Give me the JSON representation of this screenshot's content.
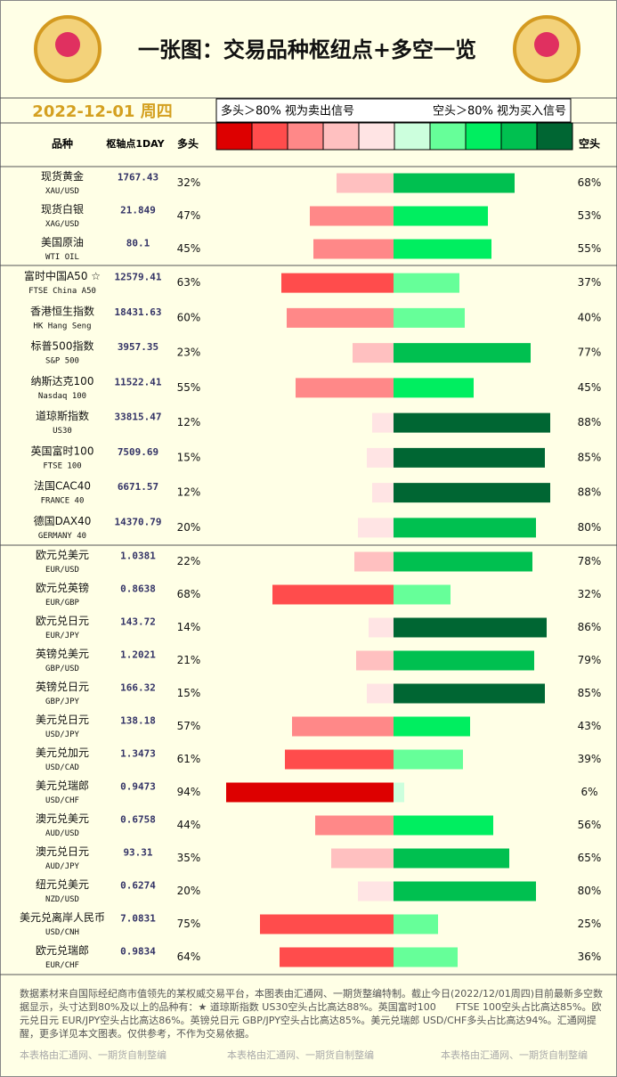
{
  "header": {
    "title": "一张图：交易品种枢纽点+多空一览",
    "date": "2022-12-01  周四",
    "legend_sell": "多头＞80% 视为卖出信号",
    "legend_buy": "空头＞80% 视为买入信号"
  },
  "long_colors": [
    "#ffe4e4",
    "#ffc0c0",
    "#ff8888",
    "#ff4c4c",
    "#dd0000"
  ],
  "short_colors": [
    "#ccffdd",
    "#66ff99",
    "#00ee60",
    "#00c050",
    "#006633"
  ],
  "columns": {
    "name": "品种",
    "pivot": "枢轴点1DAY",
    "long": "多头",
    "short": "空头"
  },
  "groups": [
    {
      "rows": [
        {
          "name": "现货黄金",
          "code": "XAU/USD",
          "pivot": 1767.43,
          "long": 32,
          "long_label": "32%",
          "short": 68,
          "short_label": "68%"
        },
        {
          "name": "现货白银",
          "code": "XAG/USD",
          "pivot": 21.849,
          "long": 47,
          "long_label": "47%",
          "short": 53,
          "short_label": "53%"
        },
        {
          "name": "美国原油",
          "code": "WTI OIL",
          "pivot": 80.1,
          "long": 45,
          "long_label": "45%",
          "short": 55,
          "short_label": "55%"
        }
      ]
    },
    {
      "rows": [
        {
          "name": "富时中国A50 ☆",
          "code": "FTSE China A50",
          "pivot": 12579.41,
          "long": 63,
          "long_label": "63%",
          "short": 37,
          "short_label": "37%"
        },
        {
          "name": "香港恒生指数",
          "code": "HK Hang Seng",
          "pivot": 18431.63,
          "long": 60,
          "long_label": "60%",
          "short": 40,
          "short_label": "40%"
        },
        {
          "name": "标普500指数",
          "code": "S&P 500",
          "pivot": 3957.35,
          "long": 23,
          "long_label": "23%",
          "short": 77,
          "short_label": "77%"
        },
        {
          "name": "纳斯达克100",
          "code": "Nasdaq 100",
          "pivot": 11522.41,
          "long": 55,
          "long_label": "55%",
          "short": 45,
          "short_label": "45%"
        },
        {
          "name": "道琼斯指数",
          "code": "US30",
          "pivot": 33815.47,
          "long": 12,
          "long_label": "12%",
          "short": 88,
          "short_label": "88%"
        },
        {
          "name": "英国富时100",
          "code": "FTSE 100",
          "pivot": 7509.69,
          "long": 15,
          "long_label": "15%",
          "short": 85,
          "short_label": "85%"
        },
        {
          "name": "法国CAC40",
          "code": "FRANCE 40",
          "pivot": 6671.57,
          "long": 12,
          "long_label": "12%",
          "short": 88,
          "short_label": "88%"
        },
        {
          "name": "德国DAX40",
          "code": "GERMANY 40",
          "pivot": 14370.79,
          "long": 20,
          "long_label": "20%",
          "short": 80,
          "short_label": "80%"
        }
      ]
    },
    {
      "rows": [
        {
          "name": "欧元兑美元",
          "code": "EUR/USD",
          "pivot": 1.0381,
          "long": 22,
          "long_label": "22%",
          "short": 78,
          "short_label": "78%"
        },
        {
          "name": "欧元兑英镑",
          "code": "EUR/GBP",
          "pivot": 0.8638,
          "long": 68,
          "long_label": "68%",
          "short": 32,
          "short_label": "32%"
        },
        {
          "name": "欧元兑日元",
          "code": "EUR/JPY",
          "pivot": 143.72,
          "long": 14,
          "long_label": "14%",
          "short": 86,
          "short_label": "86%"
        },
        {
          "name": "英镑兑美元",
          "code": "GBP/USD",
          "pivot": 1.2021,
          "long": 21,
          "long_label": "21%",
          "short": 79,
          "short_label": "79%"
        },
        {
          "name": "英镑兑日元",
          "code": "GBP/JPY",
          "pivot": 166.32,
          "long": 15,
          "long_label": "15%",
          "short": 85,
          "short_label": "85%"
        },
        {
          "name": "美元兑日元",
          "code": "USD/JPY",
          "pivot": 138.18,
          "long": 57,
          "long_label": "57%",
          "short": 43,
          "short_label": "43%"
        },
        {
          "name": "美元兑加元",
          "code": "USD/CAD",
          "pivot": 1.3473,
          "long": 61,
          "long_label": "61%",
          "short": 39,
          "short_label": "39%"
        },
        {
          "name": "美元兑瑞郎",
          "code": "USD/CHF",
          "pivot": 0.9473,
          "long": 94,
          "long_label": "94%",
          "short": 6,
          "short_label": "6%"
        },
        {
          "name": "澳元兑美元",
          "code": "AUD/USD",
          "pivot": 0.6758,
          "long": 44,
          "long_label": "44%",
          "short": 56,
          "short_label": "56%"
        },
        {
          "name": "澳元兑日元",
          "code": "AUD/JPY",
          "pivot": 93.31,
          "long": 35,
          "long_label": "35%",
          "short": 65,
          "short_label": "65%"
        },
        {
          "name": "纽元兑美元",
          "code": "NZD/USD",
          "pivot": 0.6274,
          "long": 20,
          "long_label": "20%",
          "short": 80,
          "short_label": "80%"
        },
        {
          "name": "美元兑离岸人民币",
          "code": "USD/CNH",
          "pivot": 7.0831,
          "long": 75,
          "long_label": "75%",
          "short": 25,
          "short_label": "25%"
        },
        {
          "name": "欧元兑瑞郎",
          "code": "EUR/CHF",
          "pivot": 0.9834,
          "long": 64,
          "long_label": "64%",
          "short": 36,
          "short_label": "36%"
        }
      ]
    }
  ],
  "footer": {
    "note": "数据素材来自国际经纪商市值领先的某权威交易平台，本图表由汇通网、一期货整编特制。截止今日(2022/12/01周四)目前最新多空数据显示，头寸达到80%及以上的品种有：★ 道琼斯指数 US30空头占比高达88%。英国富时100　　FTSE 100空头占比高达85%。欧元兑日元 EUR/JPY空头占比高达86%。英镑兑日元 GBP/JPY空头占比高达85%。美元兑瑞郎 USD/CHF多头占比高达94%。汇通网提醒，更多详见本文图表。仅供参考，不作为交易依据。",
    "credits": [
      "本表格由汇通网、一期货自制整编",
      "本表格由汇通网、一期货自制整编",
      "本表格由汇通网、一期货自制整编"
    ]
  }
}
